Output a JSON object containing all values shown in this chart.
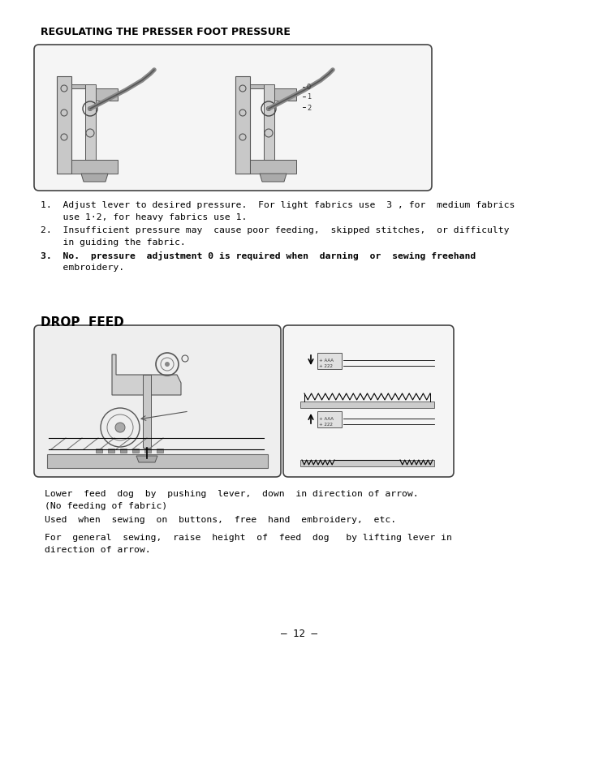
{
  "bg_color": "#ffffff",
  "title1": "REGULATING THE PRESSER FOOT PRESSURE",
  "section2_title": "DROP  FEED",
  "b1l1": "1.  Adjust lever to desired pressure.  For light fabrics use  3 , for  medium fabrics",
  "b1l2": "    use 1·2, for heavy fabrics use 1.",
  "b2l1": "2.  Insufficient pressure may  cause poor feeding,  skipped stitches,  or difficulty",
  "b2l2": "    in guiding the fabric.",
  "b3l1": "3.  No.  pressure  adjustment 0 is required when  darning  or  sewing freehand",
  "b3l2": "    embroidery.",
  "p1l1": "Lower  feed  dog  by  pushing  lever,  down  in direction of arrow.",
  "p1l2": "(No feeding of fabric)",
  "p1l3": "Used  when  sewing  on  buttons,  free  hand  embroidery,  etc.",
  "p2l1": "For  general  sewing,  raise  height  of  feed  dog   by lifting lever in",
  "p2l2": "direction of arrow.",
  "page_num": "– 12 –",
  "text_color": "#000000"
}
